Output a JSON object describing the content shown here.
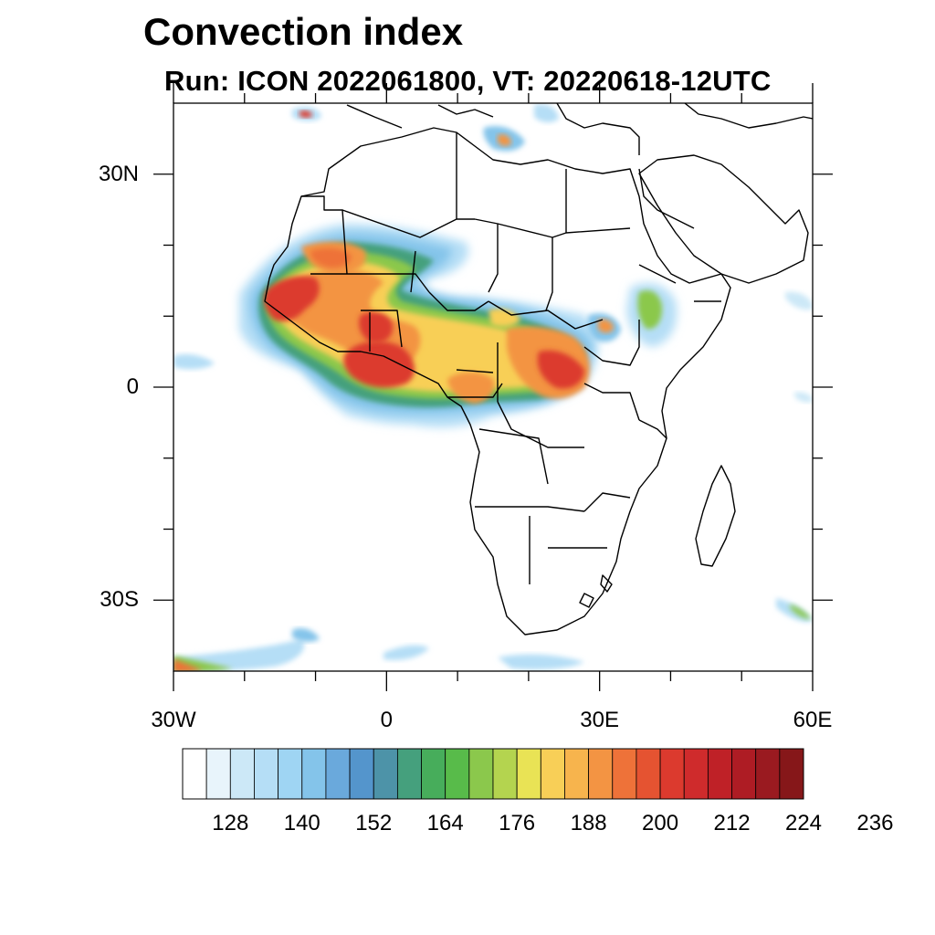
{
  "title": "Convection index",
  "subtitle": "Run: ICON 2022061800,  VT: 20220618-12UTC",
  "map": {
    "projection": "cylindrical equidistant",
    "lon_range": [
      -30,
      60
    ],
    "lat_range": [
      -40,
      40
    ],
    "lat_ticks": [
      {
        "lat": 30,
        "label": "30N"
      },
      {
        "lat": 0,
        "label": "0"
      },
      {
        "lat": -30,
        "label": "30S"
      }
    ],
    "lon_ticks": [
      {
        "lon": -30,
        "label": "30W"
      },
      {
        "lon": 0,
        "label": "0"
      },
      {
        "lon": 30,
        "label": "30E"
      },
      {
        "lon": 60,
        "label": "60E"
      }
    ],
    "regions": [
      "west-africa-sahel-convection",
      "gulf-of-guinea-convection",
      "central-africa-convection",
      "ethiopian-highlands-convection",
      "south-atlantic-frontal-band",
      "southern-ocean-band"
    ]
  },
  "colorbar": {
    "colors": [
      "#ffffff",
      "#e8f4fb",
      "#cce8f7",
      "#b5def6",
      "#9fd5f3",
      "#84c4ea",
      "#6aa9dc",
      "#5495cc",
      "#4d93a8",
      "#45a07d",
      "#47ad5b",
      "#58bb4a",
      "#8bc84c",
      "#b4d44f",
      "#e9e355",
      "#f8cf57",
      "#f7b44d",
      "#f39443",
      "#ee7239",
      "#e55331",
      "#dc3a2e",
      "#cf2b2c",
      "#bf2127",
      "#ae1c24",
      "#9a1a20",
      "#861719"
    ],
    "tick_labels": [
      "128",
      "140",
      "152",
      "164",
      "176",
      "188",
      "200",
      "212",
      "224",
      "236"
    ]
  },
  "colors": {
    "frame": "#000000",
    "coastline": "#000000",
    "background": "#ffffff"
  }
}
